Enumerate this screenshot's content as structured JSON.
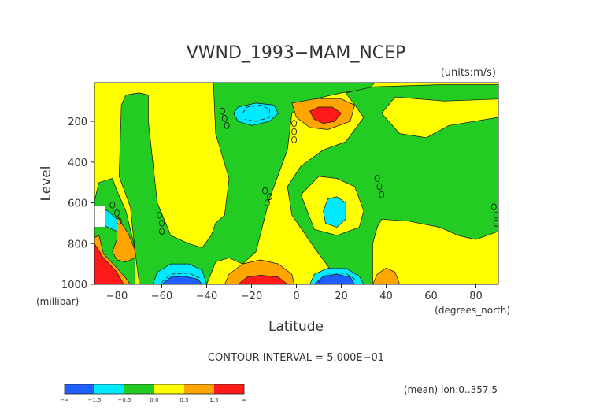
{
  "chart_data": {
    "type": "contour",
    "title": "VWND_1993−MAM_NCEP",
    "units_label": "(units:m/s)",
    "xlabel": "Latitude",
    "x_units_label": "(degrees_north)",
    "ylabel": "Level",
    "y_units_label": "(millibar)",
    "xlim": [
      -90,
      90
    ],
    "ylim": [
      1000,
      10
    ],
    "x_ticks": [
      {
        "value": -80,
        "label": "−80"
      },
      {
        "value": -60,
        "label": "−60"
      },
      {
        "value": -40,
        "label": "−40"
      },
      {
        "value": -20,
        "label": "−20"
      },
      {
        "value": 0,
        "label": "0"
      },
      {
        "value": 20,
        "label": "20"
      },
      {
        "value": 40,
        "label": "40"
      },
      {
        "value": 60,
        "label": "60"
      },
      {
        "value": 80,
        "label": "80"
      }
    ],
    "y_ticks": [
      {
        "value": 200,
        "label": "200"
      },
      {
        "value": 400,
        "label": "400"
      },
      {
        "value": 600,
        "label": "600"
      },
      {
        "value": 800,
        "label": "800"
      },
      {
        "value": 1000,
        "label": "1000"
      }
    ],
    "contour_interval_text": "CONTOUR INTERVAL = 5.000E−01",
    "footer_note": "(mean) lon:0..357.5",
    "colorbar": {
      "colors": [
        "#1f5fff",
        "#00eaff",
        "#22cc22",
        "#ffff00",
        "#ffa500",
        "#ff1a1a"
      ],
      "labels": [
        "−∞",
        "−1.5",
        "−0.5",
        "0.0",
        "0.5",
        "1.5",
        "∞"
      ]
    },
    "background_color": "#ffff00",
    "regions": [
      {
        "level": "-0.5..0.0",
        "color": "#22cc22",
        "points": [
          [
            -90,
            590
          ],
          [
            -88,
            500
          ],
          [
            -82,
            480
          ],
          [
            -80,
            540
          ],
          [
            -76,
            640
          ],
          [
            -72,
            820
          ],
          [
            -72,
            1000
          ],
          [
            -90,
            1000
          ]
        ]
      },
      {
        "level": "-0.5..0.0",
        "color": "#22cc22",
        "points": [
          [
            -79,
            470
          ],
          [
            -78,
            120
          ],
          [
            -76,
            70
          ],
          [
            -70,
            60
          ],
          [
            -66,
            70
          ],
          [
            -66,
            200
          ],
          [
            -62,
            600
          ],
          [
            -56,
            760
          ],
          [
            -48,
            800
          ],
          [
            -42,
            820
          ],
          [
            -38,
            760
          ],
          [
            -36,
            700
          ],
          [
            -32,
            660
          ],
          [
            -30,
            480
          ],
          [
            -36,
            260
          ],
          [
            -37,
            10
          ],
          [
            35,
            10
          ],
          [
            32,
            40
          ],
          [
            20,
            60
          ],
          [
            4,
            100
          ],
          [
            -2,
            160
          ],
          [
            -4,
            340
          ],
          [
            -12,
            580
          ],
          [
            -18,
            840
          ],
          [
            -24,
            900
          ],
          [
            -30,
            870
          ],
          [
            -36,
            890
          ],
          [
            -40,
            1000
          ],
          [
            -70,
            1000
          ],
          [
            -72,
            830
          ],
          [
            -74,
            620
          ]
        ]
      },
      {
        "level": "-0.5..0.0",
        "color": "#22cc22",
        "points": [
          [
            22,
            60
          ],
          [
            34,
            30
          ],
          [
            64,
            20
          ],
          [
            90,
            20
          ],
          [
            90,
            740
          ],
          [
            80,
            780
          ],
          [
            72,
            760
          ],
          [
            64,
            720
          ],
          [
            50,
            690
          ],
          [
            38,
            680
          ],
          [
            36,
            720
          ],
          [
            34,
            800
          ],
          [
            34,
            1000
          ],
          [
            20,
            1000
          ],
          [
            8,
            820
          ],
          [
            -2,
            660
          ],
          [
            -4,
            520
          ],
          [
            2,
            420
          ],
          [
            12,
            340
          ],
          [
            22,
            300
          ],
          [
            30,
            180
          ]
        ]
      },
      {
        "level": "0.0..0.5",
        "color": "#ffff00",
        "points": [
          [
            44,
            80
          ],
          [
            66,
            100
          ],
          [
            90,
            90
          ],
          [
            90,
            180
          ],
          [
            68,
            220
          ],
          [
            58,
            280
          ],
          [
            46,
            260
          ],
          [
            38,
            160
          ]
        ]
      },
      {
        "level": "0.0..0.5",
        "color": "#ffff00",
        "points": [
          [
            2,
            560
          ],
          [
            10,
            470
          ],
          [
            18,
            480
          ],
          [
            26,
            520
          ],
          [
            30,
            640
          ],
          [
            28,
            720
          ],
          [
            18,
            760
          ],
          [
            8,
            730
          ]
        ]
      },
      {
        "level": "-1.5..-0.5",
        "color": "#00eaff",
        "points": [
          [
            -28,
            160
          ],
          [
            -26,
            130
          ],
          [
            -18,
            110
          ],
          [
            -10,
            120
          ],
          [
            -8,
            160
          ],
          [
            -12,
            200
          ],
          [
            -20,
            220
          ],
          [
            -26,
            200
          ]
        ]
      },
      {
        "level": "-1.5..-0.5",
        "color": "#00eaff",
        "points": [
          [
            12,
            640
          ],
          [
            14,
            580
          ],
          [
            18,
            570
          ],
          [
            22,
            600
          ],
          [
            22,
            680
          ],
          [
            18,
            720
          ],
          [
            13,
            700
          ]
        ]
      },
      {
        "level": "-1.5..-0.5",
        "color": "#00eaff",
        "points": [
          [
            -88,
            620
          ],
          [
            -84,
            640
          ],
          [
            -80,
            680
          ],
          [
            -80,
            740
          ],
          [
            -84,
            720
          ],
          [
            -88,
            700
          ]
        ]
      },
      {
        "level": "0.5..1.5",
        "color": "#ffa500",
        "points": [
          [
            -80,
            660
          ],
          [
            -78,
            700
          ],
          [
            -75,
            750
          ],
          [
            -72,
            830
          ],
          [
            -72,
            870
          ],
          [
            -76,
            890
          ],
          [
            -80,
            880
          ],
          [
            -82,
            840
          ],
          [
            -80,
            780
          ]
        ]
      },
      {
        "level": "0.5..1.5",
        "color": "#ffa500",
        "points": [
          [
            -88,
            760
          ],
          [
            -86,
            850
          ],
          [
            -80,
            920
          ],
          [
            -76,
            970
          ],
          [
            -74,
            1000
          ],
          [
            -90,
            1000
          ],
          [
            -90,
            770
          ]
        ]
      },
      {
        "level": "0.5..1.5",
        "color": "#ffa500",
        "points": [
          [
            -2,
            110
          ],
          [
            8,
            90
          ],
          [
            20,
            90
          ],
          [
            26,
            120
          ],
          [
            24,
            200
          ],
          [
            14,
            240
          ],
          [
            6,
            230
          ],
          [
            0,
            180
          ]
        ]
      },
      {
        "level": "0.5..1.5",
        "color": "#ffa500",
        "points": [
          [
            -32,
            1000
          ],
          [
            -30,
            950
          ],
          [
            -24,
            900
          ],
          [
            -16,
            880
          ],
          [
            -8,
            900
          ],
          [
            -2,
            950
          ],
          [
            -1,
            1000
          ]
        ]
      },
      {
        "level": "0.5..1.5",
        "color": "#ffa500",
        "points": [
          [
            34,
            1000
          ],
          [
            36,
            950
          ],
          [
            40,
            920
          ],
          [
            44,
            940
          ],
          [
            46,
            1000
          ]
        ]
      },
      {
        "level": "-1.5..-0.5",
        "color": "#00eaff",
        "points": [
          [
            -64,
            1000
          ],
          [
            -62,
            940
          ],
          [
            -56,
            900
          ],
          [
            -48,
            900
          ],
          [
            -42,
            930
          ],
          [
            -40,
            1000
          ]
        ]
      },
      {
        "level": "-1.5..-0.5",
        "color": "#00eaff",
        "points": [
          [
            6,
            1000
          ],
          [
            8,
            950
          ],
          [
            14,
            920
          ],
          [
            22,
            920
          ],
          [
            28,
            960
          ],
          [
            30,
            1000
          ]
        ]
      },
      {
        "level": ">1.5",
        "color": "#ff1a1a",
        "points": [
          [
            -90,
            800
          ],
          [
            -86,
            870
          ],
          [
            -80,
            940
          ],
          [
            -77,
            1000
          ],
          [
            -90,
            1000
          ]
        ]
      },
      {
        "level": ">1.5",
        "color": "#ff1a1a",
        "points": [
          [
            6,
            150
          ],
          [
            10,
            130
          ],
          [
            16,
            130
          ],
          [
            20,
            160
          ],
          [
            17,
            200
          ],
          [
            12,
            210
          ],
          [
            8,
            190
          ]
        ]
      },
      {
        "level": ">1.5",
        "color": "#ff1a1a",
        "points": [
          [
            -26,
            1000
          ],
          [
            -22,
            965
          ],
          [
            -16,
            955
          ],
          [
            -8,
            965
          ],
          [
            -4,
            1000
          ]
        ]
      },
      {
        "level": "<-1.5",
        "color": "#1f5fff",
        "points": [
          [
            -60,
            1000
          ],
          [
            -56,
            965
          ],
          [
            -50,
            960
          ],
          [
            -44,
            975
          ],
          [
            -42,
            1000
          ]
        ]
      },
      {
        "level": "<-1.5",
        "color": "#1f5fff",
        "points": [
          [
            8,
            1000
          ],
          [
            12,
            960
          ],
          [
            18,
            950
          ],
          [
            24,
            965
          ],
          [
            26,
            1000
          ]
        ]
      }
    ],
    "dashed_contours": [
      {
        "points": [
          [
            -24,
            160
          ],
          [
            -22,
            130
          ],
          [
            -16,
            120
          ],
          [
            -12,
            140
          ],
          [
            -12,
            180
          ],
          [
            -18,
            200
          ],
          [
            -23,
            190
          ]
        ]
      },
      {
        "points": [
          [
            -60,
            990
          ],
          [
            -56,
            950
          ],
          [
            -48,
            945
          ],
          [
            -43,
            970
          ]
        ]
      },
      {
        "points": [
          [
            10,
            990
          ],
          [
            14,
            945
          ],
          [
            22,
            945
          ],
          [
            26,
            975
          ]
        ]
      }
    ],
    "zero_labels": [
      {
        "x": -33,
        "y": 150
      },
      {
        "x": -32,
        "y": 185
      },
      {
        "x": -31,
        "y": 220
      },
      {
        "x": -1,
        "y": 210
      },
      {
        "x": -1,
        "y": 250
      },
      {
        "x": -1,
        "y": 290
      },
      {
        "x": -14,
        "y": 540
      },
      {
        "x": -12,
        "y": 570
      },
      {
        "x": -13,
        "y": 600
      },
      {
        "x": -82,
        "y": 610
      },
      {
        "x": -80,
        "y": 650
      },
      {
        "x": -79,
        "y": 690
      },
      {
        "x": -61,
        "y": 660
      },
      {
        "x": -60,
        "y": 700
      },
      {
        "x": -60,
        "y": 740
      },
      {
        "x": 36,
        "y": 480
      },
      {
        "x": 37,
        "y": 520
      },
      {
        "x": 38,
        "y": 560
      },
      {
        "x": 88,
        "y": 620
      },
      {
        "x": 89,
        "y": 660
      },
      {
        "x": 89,
        "y": 700
      }
    ]
  }
}
